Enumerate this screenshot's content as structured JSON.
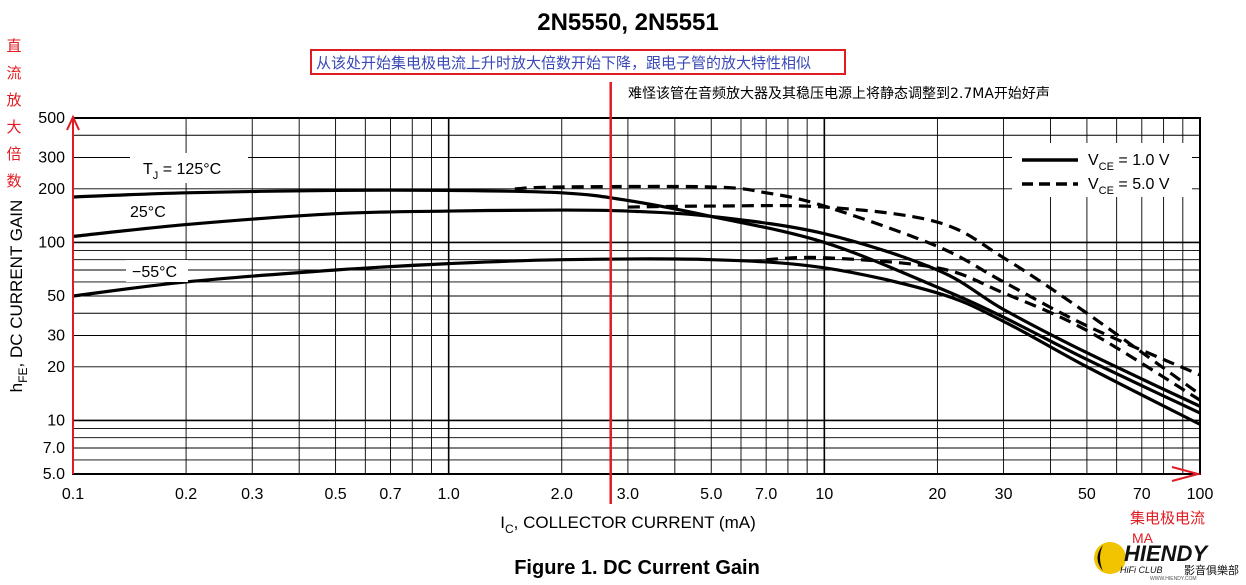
{
  "chart_data": {
    "type": "line",
    "title": "2N5550, 2N5551",
    "caption": "Figure 1. DC Current Gain",
    "xlabel_main": "I",
    "xlabel_sub": "C",
    "xlabel_rest": ", COLLECTOR CURRENT (mA)",
    "ylabel_main": "h",
    "ylabel_sub": "FE",
    "ylabel_rest": ", DC CURRENT GAIN",
    "xscale": "log",
    "yscale": "log",
    "xlim": [
      0.1,
      100
    ],
    "ylim": [
      5,
      500
    ],
    "grid": true,
    "x_ticks": [
      {
        "v": 0.1,
        "label": "0.1"
      },
      {
        "v": 0.2,
        "label": "0.2"
      },
      {
        "v": 0.3,
        "label": "0.3"
      },
      {
        "v": 0.5,
        "label": "0.5"
      },
      {
        "v": 0.7,
        "label": "0.7"
      },
      {
        "v": 1.0,
        "label": "1.0"
      },
      {
        "v": 2.0,
        "label": "2.0"
      },
      {
        "v": 3.0,
        "label": "3.0"
      },
      {
        "v": 5.0,
        "label": "5.0"
      },
      {
        "v": 7.0,
        "label": "7.0"
      },
      {
        "v": 10,
        "label": "10"
      },
      {
        "v": 20,
        "label": "20"
      },
      {
        "v": 30,
        "label": "30"
      },
      {
        "v": 50,
        "label": "50"
      },
      {
        "v": 70,
        "label": "70"
      },
      {
        "v": 100,
        "label": "100"
      }
    ],
    "y_ticks": [
      {
        "v": 5,
        "label": "5.0"
      },
      {
        "v": 7,
        "label": "7.0"
      },
      {
        "v": 10,
        "label": "10"
      },
      {
        "v": 20,
        "label": "20"
      },
      {
        "v": 30,
        "label": "30"
      },
      {
        "v": 50,
        "label": "50"
      },
      {
        "v": 100,
        "label": "100"
      },
      {
        "v": 200,
        "label": "200"
      },
      {
        "v": 300,
        "label": "300"
      },
      {
        "v": 500,
        "label": "500"
      }
    ],
    "legend": {
      "position": "top-right",
      "entries": [
        {
          "style": "solid",
          "main": "V",
          "sub": "CE",
          "rest": " = 1.0 V"
        },
        {
          "style": "dashed",
          "main": "V",
          "sub": "CE",
          "rest": " = 5.0 V"
        }
      ]
    },
    "curve_labels": [
      {
        "main": "T",
        "sub": "J",
        "rest": " = 125°C"
      },
      {
        "text": "25°C"
      },
      {
        "text": "−55°C"
      }
    ],
    "series": [
      {
        "group": "125°C",
        "style": "solid",
        "points": [
          [
            0.1,
            180
          ],
          [
            0.2,
            190
          ],
          [
            0.5,
            196
          ],
          [
            1,
            196
          ],
          [
            2,
            190
          ],
          [
            3,
            172
          ],
          [
            5,
            140
          ],
          [
            10,
            100
          ],
          [
            20,
            56
          ],
          [
            30,
            38
          ],
          [
            50,
            22
          ],
          [
            100,
            11
          ]
        ]
      },
      {
        "group": "25°C",
        "style": "solid",
        "points": [
          [
            0.1,
            108
          ],
          [
            0.2,
            126
          ],
          [
            0.5,
            145
          ],
          [
            1,
            150
          ],
          [
            2,
            152
          ],
          [
            3,
            150
          ],
          [
            5,
            140
          ],
          [
            10,
            112
          ],
          [
            20,
            70
          ],
          [
            30,
            42
          ],
          [
            50,
            24
          ],
          [
            100,
            12
          ]
        ]
      },
      {
        "group": "−55°C",
        "style": "solid",
        "points": [
          [
            0.1,
            50
          ],
          [
            0.2,
            60
          ],
          [
            0.5,
            70
          ],
          [
            1,
            76
          ],
          [
            2,
            80
          ],
          [
            5,
            80
          ],
          [
            10,
            72
          ],
          [
            20,
            52
          ],
          [
            30,
            36
          ],
          [
            50,
            20
          ],
          [
            100,
            9.5
          ]
        ]
      },
      {
        "group": "125°C",
        "style": "dashed",
        "points": [
          [
            1.5,
            200
          ],
          [
            2,
            205
          ],
          [
            5,
            205
          ],
          [
            7,
            190
          ],
          [
            10,
            160
          ],
          [
            20,
            95
          ],
          [
            30,
            60
          ],
          [
            50,
            34
          ],
          [
            100,
            18
          ]
        ]
      },
      {
        "group": "25°C",
        "style": "dashed",
        "points": [
          [
            3,
            158
          ],
          [
            5,
            160
          ],
          [
            10,
            158
          ],
          [
            20,
            130
          ],
          [
            30,
            82
          ],
          [
            50,
            40
          ],
          [
            100,
            14
          ]
        ]
      },
      {
        "group": "−55°C",
        "style": "dashed",
        "points": [
          [
            7,
            80
          ],
          [
            10,
            82
          ],
          [
            20,
            72
          ],
          [
            30,
            52
          ],
          [
            50,
            32
          ],
          [
            100,
            13
          ]
        ]
      }
    ]
  },
  "annotations": {
    "y_axis_cn": [
      "直",
      "流",
      "放",
      "大",
      "倍",
      "数"
    ],
    "x_axis_cn": "集电极电流",
    "x_axis_unit": "MA",
    "box_note": "从该处开始集电极电流上升时放大倍数开始下降，跟电子管的放大特性相似",
    "note2": "难怪该管在音频放大器及其稳压电源上将静态调整到2.7MA开始好声",
    "marker_current_ma": 2.7
  },
  "logo": {
    "main": "HIENDY",
    "sub_left": "HiFi CLUB",
    "sub_right": "影音俱樂部",
    "url": "WWW.HIENDY.COM"
  },
  "colors": {
    "curve": "#000000",
    "grid": "#000000",
    "annotation_red": "#e11b22",
    "box_text": "#3a48b8"
  }
}
